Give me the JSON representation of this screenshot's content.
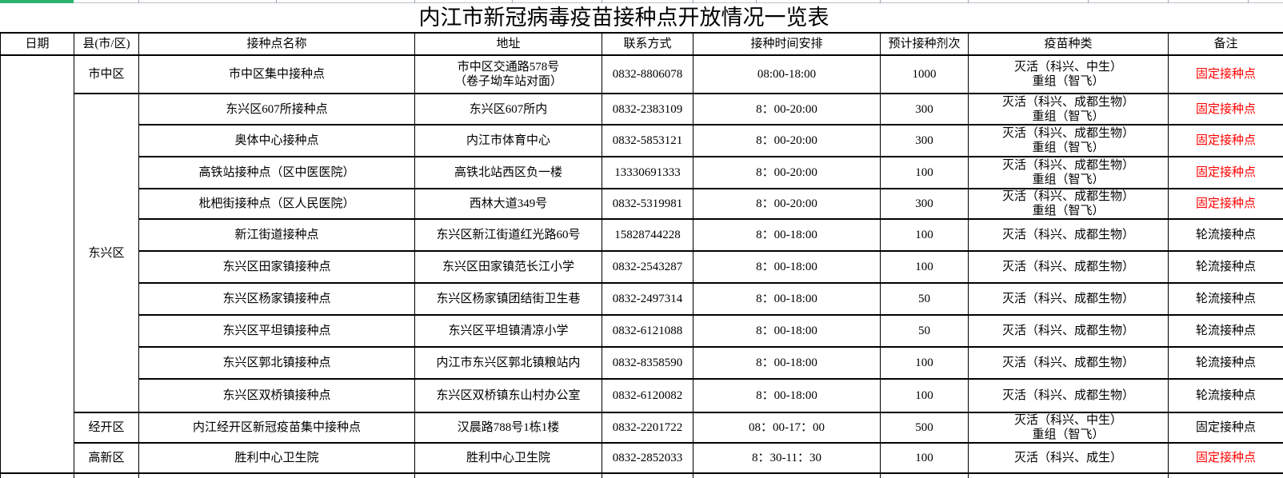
{
  "title": "内江市新冠病毒疫苗接种点开放情况一览表",
  "colors": {
    "remark_highlight": "#ff0000",
    "text": "#000000",
    "progress_green": "#2bb36e"
  },
  "table": {
    "headers": [
      "日期",
      "县(市/区)",
      "接种点名称",
      "地址",
      "联系方式",
      "接种时间安排",
      "预计接种剂次",
      "疫苗种类",
      "备注"
    ],
    "date_column_value": "",
    "rows": [
      {
        "county": "市中区",
        "county_span": 1,
        "name": "市中区集中接种点",
        "address": "市中区交通路578号\n（卷子坳车站对面）",
        "phone": "0832-8806078",
        "time": "08:00-18:00",
        "doses": "1000",
        "vaccine": "灭活（科兴、中生）\n重组（智飞）",
        "remark": "固定接种点",
        "remark_color": "red"
      },
      {
        "county": "东兴区",
        "county_span": 10,
        "name": "东兴区607所接种点",
        "address": "东兴区607所内",
        "phone": "0832-2383109",
        "time": "8：00-20:00",
        "doses": "300",
        "vaccine": "灭活（科兴、成都生物）\n重组（智飞）",
        "remark": "固定接种点",
        "remark_color": "red"
      },
      {
        "name": "奥体中心接种点",
        "address": "内江市体育中心",
        "phone": "0832-5853121",
        "time": "8：00-20:00",
        "doses": "300",
        "vaccine": "灭活（科兴、成都生物）\n重组（智飞）",
        "remark": "固定接种点",
        "remark_color": "red"
      },
      {
        "name": "高铁站接种点（区中医医院）",
        "address": "高铁北站西区负一楼",
        "phone": "13330691333",
        "time": "8：00-20:00",
        "doses": "100",
        "vaccine": "灭活（科兴、成都生物）\n重组（智飞）",
        "remark": "固定接种点",
        "remark_color": "red"
      },
      {
        "name": "枇杷街接种点（区人民医院）",
        "address": "西林大道349号",
        "phone": "0832-5319981",
        "time": "8：00-20:00",
        "doses": "300",
        "vaccine": "灭活（科兴、成都生物）\n重组（智飞）",
        "remark": "固定接种点",
        "remark_color": "red"
      },
      {
        "name": "新江街道接种点",
        "address": "东兴区新江街道红光路60号",
        "phone": "15828744228",
        "time": "8：00-18:00",
        "doses": "100",
        "vaccine": "灭活（科兴、成都生物）",
        "remark": "轮流接种点",
        "remark_color": "black"
      },
      {
        "name": "东兴区田家镇接种点",
        "address": "东兴区田家镇范长江小学",
        "phone": "0832-2543287",
        "time": "8：00-18:00",
        "doses": "100",
        "vaccine": "灭活（科兴、成都生物）",
        "remark": "轮流接种点",
        "remark_color": "black"
      },
      {
        "name": "东兴区杨家镇接种点",
        "address": "东兴区杨家镇团结街卫生巷",
        "phone": "0832-2497314",
        "time": "8：00-18:00",
        "doses": "50",
        "vaccine": "灭活（科兴、成都生物）",
        "remark": "轮流接种点",
        "remark_color": "black"
      },
      {
        "name": "东兴区平坦镇接种点",
        "address": "东兴区平坦镇清凉小学",
        "phone": "0832-6121088",
        "time": "8：00-18:00",
        "doses": "50",
        "vaccine": "灭活（科兴、成都生物）",
        "remark": "轮流接种点",
        "remark_color": "black"
      },
      {
        "name": "东兴区郭北镇接种点",
        "address": "内江市东兴区郭北镇粮站内",
        "phone": "0832-8358590",
        "time": "8：00-18:00",
        "doses": "100",
        "vaccine": "灭活（科兴、成都生物）",
        "remark": "轮流接种点",
        "remark_color": "black"
      },
      {
        "name": "东兴区双桥镇接种点",
        "address": "东兴区双桥镇东山村办公室",
        "phone": "0832-6120082",
        "time": "8：00-18:00",
        "doses": "100",
        "vaccine": "灭活（科兴、成都生物）",
        "remark": "轮流接种点",
        "remark_color": "black"
      },
      {
        "county": "经开区",
        "county_span": 1,
        "name": "内江经开区新冠疫苗集中接种点",
        "address": "汉晨路788号1栋1楼",
        "phone": "0832-2201722",
        "time": "08：00-17：00",
        "doses": "500",
        "vaccine": "灭活（科兴、中生）\n重组（智飞）",
        "remark": "固定接种点",
        "remark_color": "black"
      },
      {
        "county": "高新区",
        "county_span": 1,
        "name": "胜利中心卫生院",
        "address": "胜利中心卫生院",
        "phone": "0832-2852033",
        "time": "8：30-11：30",
        "doses": "100",
        "vaccine": "灭活（科兴、成生）",
        "remark": "固定接种点",
        "remark_color": "red"
      }
    ]
  }
}
